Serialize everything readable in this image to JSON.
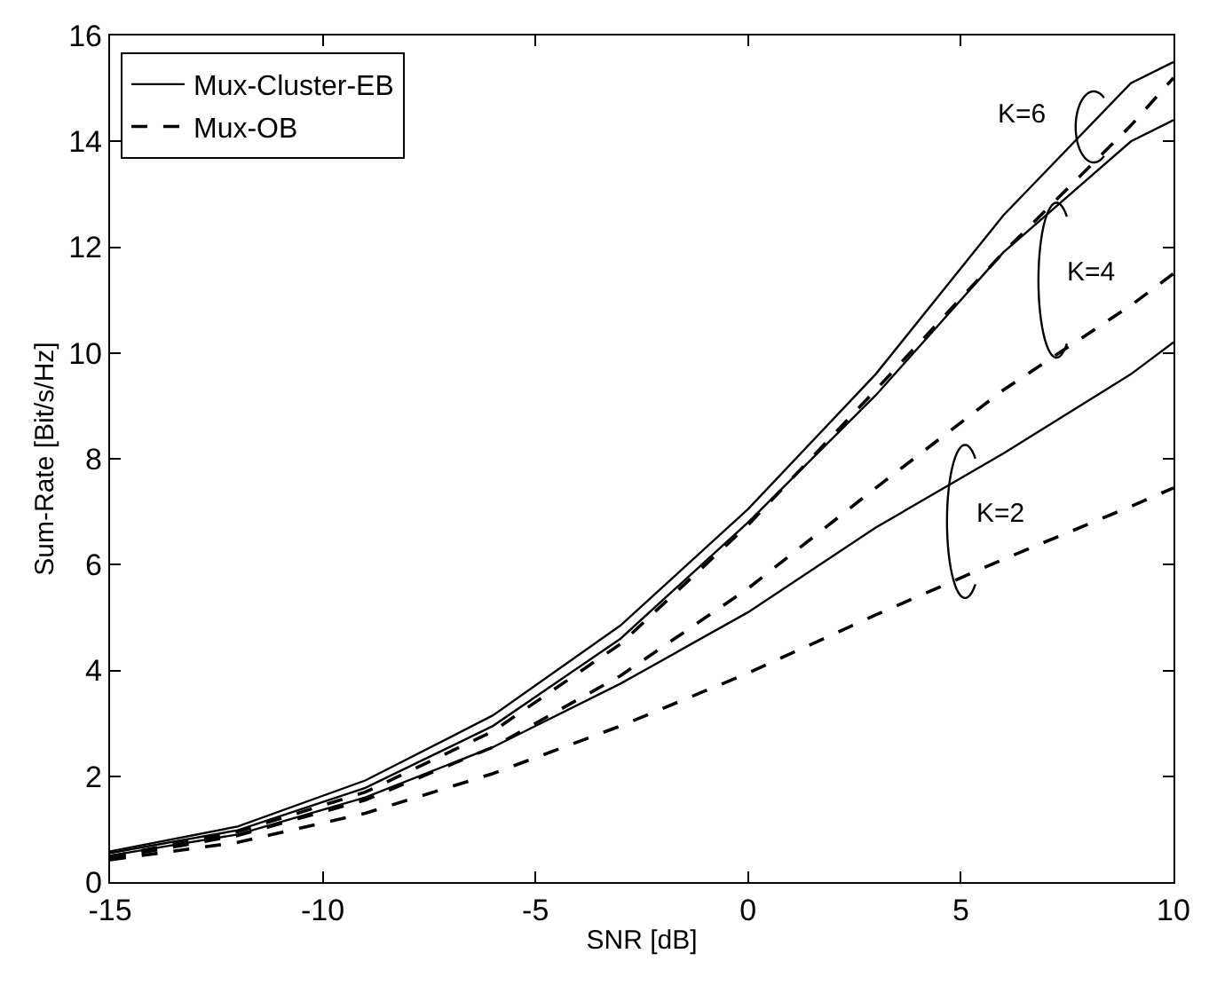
{
  "chart_data": {
    "type": "line",
    "xlabel": "SNR [dB]",
    "ylabel": "Sum-Rate [Bit/s/Hz]",
    "x": [
      -15,
      -12,
      -9,
      -6,
      -3,
      0,
      3,
      6,
      9,
      10
    ],
    "xlim": [
      -15,
      10
    ],
    "xticks": [
      -15,
      -10,
      -5,
      0,
      5,
      10
    ],
    "ylim": [
      0,
      16
    ],
    "yticks": [
      0,
      2,
      4,
      6,
      8,
      10,
      12,
      14,
      16
    ],
    "grid": false,
    "legend": "top left",
    "marker": "none",
    "series": [
      {
        "name": "Mux-Cluster-EB",
        "color": "#000000",
        "line_style": "solid",
        "values": [
          0.58,
          1.05,
          1.92,
          3.15,
          4.85,
          7.05,
          9.6,
          12.6,
          15.1,
          15.5
        ]
      },
      {
        "color": "#000000",
        "line_style": "solid",
        "values": [
          0.55,
          0.98,
          1.78,
          2.95,
          4.6,
          6.8,
          9.2,
          11.9,
          14.0,
          14.4
        ]
      },
      {
        "color": "#000000",
        "line_style": "solid",
        "values": [
          0.5,
          0.9,
          1.6,
          2.55,
          3.75,
          5.1,
          6.7,
          8.1,
          9.6,
          10.2
        ]
      },
      {
        "name": "Mux-OB",
        "color": "#000000",
        "line_style": "dashed",
        "values": [
          0.48,
          0.95,
          1.7,
          2.85,
          4.5,
          6.75,
          9.3,
          11.9,
          14.3,
          15.2
        ]
      },
      {
        "color": "#000000",
        "line_style": "dashed",
        "values": [
          0.45,
          0.88,
          1.55,
          2.55,
          3.9,
          5.55,
          7.45,
          9.3,
          10.9,
          11.5
        ]
      },
      {
        "color": "#000000",
        "line_style": "dashed",
        "values": [
          0.42,
          0.75,
          1.3,
          2.05,
          2.95,
          3.95,
          5.05,
          6.1,
          7.1,
          7.45
        ]
      }
    ],
    "annotations": [
      "K=6",
      "K=4",
      "K=2"
    ]
  }
}
